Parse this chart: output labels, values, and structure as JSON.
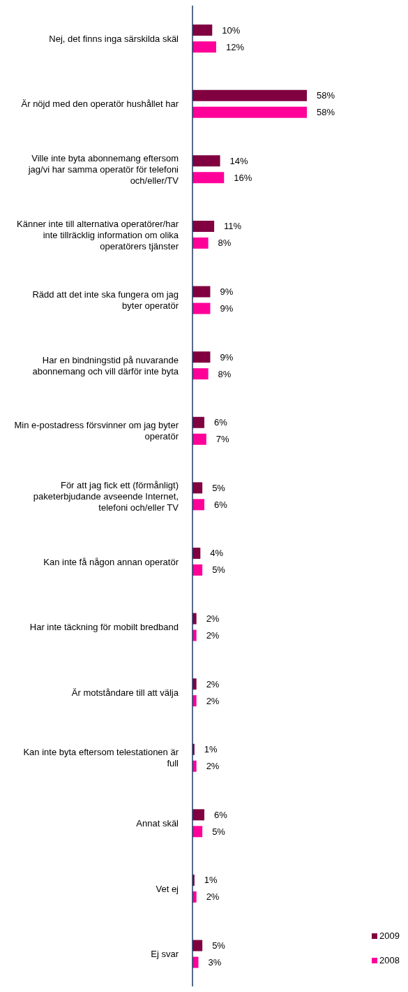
{
  "chart_data": {
    "type": "bar",
    "orientation": "horizontal",
    "categories": [
      "Nej, det finns inga särskilda skäl",
      "Är nöjd med den operatör hushållet har",
      "Ville inte byta abonnemang eftersom jag/vi har samma operatör för telefoni och/eller/TV",
      "Känner inte till alternativa operatörer/har inte tillräcklig information om olika operatörers tjänster",
      "Rädd att det inte ska fungera om jag byter operatör",
      "Har en bindningstid på nuvarande abonnemang och vill därför inte byta",
      "Min e-postadress försvinner om jag byter operatör",
      "För att jag fick ett (förmånligt) paketerbjudande avseende Internet, telefoni och/eller TV",
      "Kan inte få någon annan operatör",
      "Har inte täckning för mobilt bredband",
      "Är motståndare till att välja",
      "Kan inte byta eftersom telestationen är full",
      "Annat skäl",
      "Vet ej",
      "Ej svar"
    ],
    "series": [
      {
        "name": "2009",
        "color": "#800040",
        "values": [
          10,
          58,
          14,
          11,
          9,
          9,
          6,
          5,
          4,
          2,
          2,
          1,
          6,
          1,
          5
        ],
        "value_labels": [
          "10%",
          "58%",
          "14%",
          "11%",
          "9%",
          "9%",
          "6%",
          "5%",
          "4%",
          "2%",
          "2%",
          "1%",
          "6%",
          "1%",
          "5%"
        ]
      },
      {
        "name": "2008",
        "color": "#ff0099",
        "values": [
          12,
          58,
          16,
          8,
          9,
          8,
          7,
          6,
          5,
          2,
          2,
          2,
          5,
          2,
          3
        ],
        "value_labels": [
          "12%",
          "58%",
          "16%",
          "8%",
          "9%",
          "8%",
          "7%",
          "6%",
          "5%",
          "2%",
          "2%",
          "2%",
          "5%",
          "2%",
          "3%"
        ]
      }
    ],
    "legend": "bottom right",
    "grid": false
  }
}
